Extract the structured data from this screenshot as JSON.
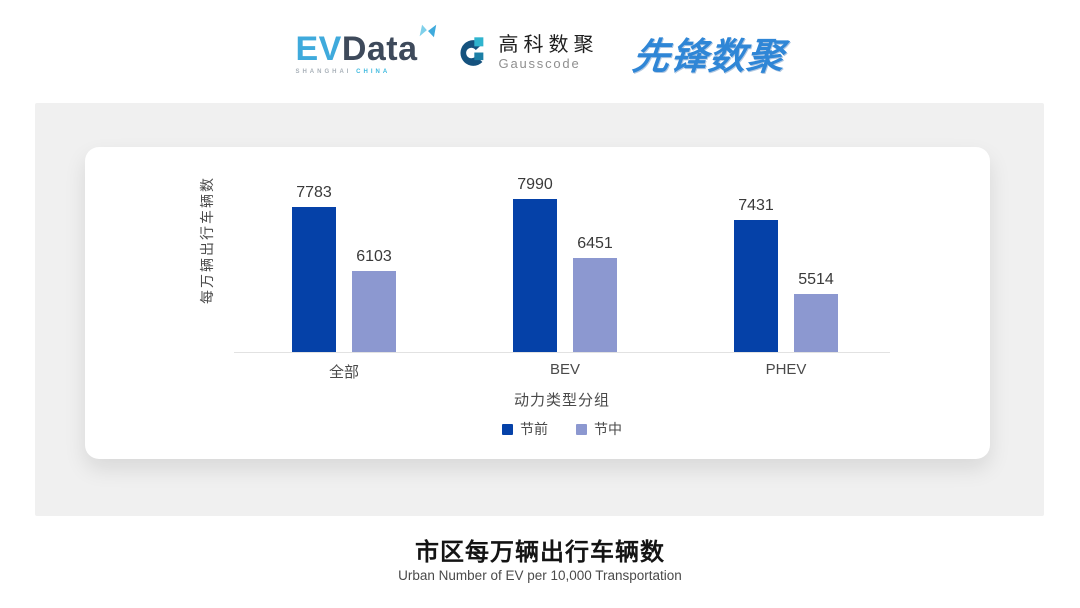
{
  "header": {
    "evdata": {
      "ev": "EV",
      "data": "Data",
      "sub_left": "SHANGHAI",
      "sub_right": "CHINA"
    },
    "gausscode": {
      "title_cn": "高科数聚",
      "title_en": "Gausscode"
    },
    "pioneer": {
      "text": "先锋数聚"
    }
  },
  "chart_data": {
    "type": "bar",
    "title": "市区每万辆出行车辆数",
    "subtitle": "Urban Number of EV per 10,000 Transportation",
    "categories": [
      "全部",
      "BEV",
      "PHEV"
    ],
    "series": [
      {
        "name": "节前",
        "color": "#0541A8",
        "values": [
          7783,
          7990,
          7431
        ]
      },
      {
        "name": "节中",
        "color": "#8C98D0",
        "values": [
          6103,
          6451,
          5514
        ]
      }
    ],
    "xlabel": "动力类型分组",
    "ylabel": "每万辆出行车辆数",
    "ylim": [
      4000,
      8200
    ],
    "grid": false,
    "legend_position": "bottom",
    "value_labels": true
  },
  "colors": {
    "panel_bg": "#F0F0F0",
    "card_bg": "#FFFFFF",
    "axis_line": "#E2E2E2",
    "series_dark": "#0541A8",
    "series_light": "#8C98D0"
  }
}
